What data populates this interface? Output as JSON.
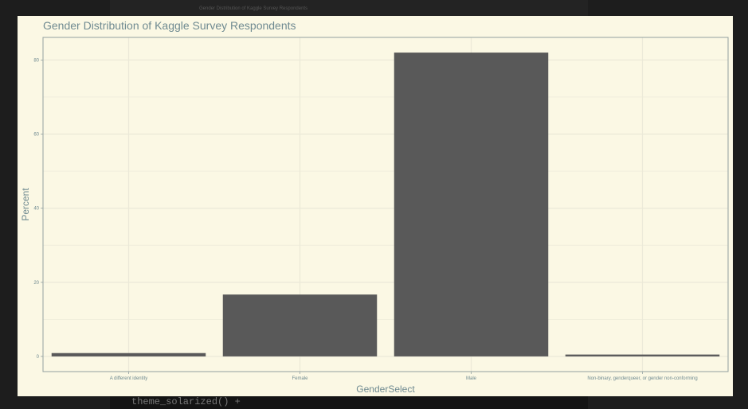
{
  "background": {
    "faint_header": "Gender Distribution of Kaggle Survey Respondents",
    "code_line": "theme_solarized() +"
  },
  "colors": {
    "panel_bg": "#fbf8e4",
    "bar_fill": "#595959",
    "grid": "#ebe9d8",
    "border": "#93a1a1",
    "text": "#6f8a91"
  },
  "chart_data": {
    "type": "bar",
    "title": "Gender Distribution of Kaggle Survey Respondents",
    "xlabel": "GenderSelect",
    "ylabel": "Percent",
    "categories": [
      "A different identity",
      "Female",
      "Male",
      "Non-binary, genderqueer, or gender non-conforming"
    ],
    "values": [
      0.9,
      16.7,
      82.0,
      0.5
    ],
    "ylim": [
      -4.1,
      86.1
    ],
    "yticks": [
      0,
      20,
      40,
      60,
      80
    ],
    "grid": true,
    "legend": "none"
  }
}
